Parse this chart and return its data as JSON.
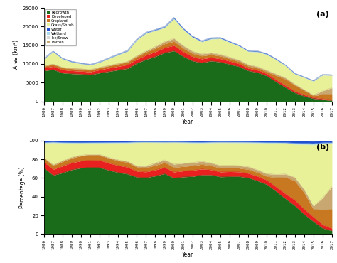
{
  "years": [
    1986,
    1987,
    1988,
    1989,
    1990,
    1991,
    1992,
    1993,
    1994,
    1995,
    1996,
    1997,
    1998,
    1999,
    2000,
    2001,
    2002,
    2003,
    2004,
    2005,
    2006,
    2007,
    2008,
    2009,
    2010,
    2011,
    2012,
    2013,
    2014,
    2015,
    2016,
    2017
  ],
  "regrowth": [
    8200,
    8500,
    7600,
    7400,
    7300,
    7100,
    7600,
    8000,
    8400,
    8800,
    10200,
    11200,
    12000,
    13000,
    13500,
    12000,
    10800,
    10300,
    10800,
    10500,
    9900,
    9300,
    8200,
    7700,
    6800,
    5200,
    3700,
    2300,
    1400,
    750,
    450,
    250
  ],
  "developed": [
    750,
    850,
    850,
    800,
    780,
    760,
    850,
    900,
    950,
    1000,
    1050,
    1150,
    1250,
    1350,
    1450,
    1250,
    1150,
    1050,
    950,
    900,
    850,
    750,
    660,
    650,
    610,
    560,
    510,
    460,
    370,
    280,
    270,
    180
  ],
  "cropland": [
    450,
    550,
    550,
    550,
    550,
    530,
    550,
    600,
    650,
    700,
    750,
    850,
    950,
    1050,
    1100,
    950,
    850,
    800,
    750,
    700,
    650,
    600,
    560,
    560,
    510,
    1150,
    1750,
    1550,
    1150,
    460,
    1150,
    1450
  ],
  "grass_shrub": [
    1800,
    3200,
    2200,
    1600,
    1300,
    1200,
    1300,
    1800,
    2300,
    2700,
    4200,
    4700,
    4200,
    3700,
    5200,
    4300,
    3700,
    3200,
    3700,
    4200,
    3900,
    3700,
    3500,
    3900,
    4200,
    3800,
    3200,
    2700,
    3200,
    3700,
    4200,
    3300
  ],
  "water": [
    180,
    180,
    180,
    180,
    180,
    160,
    170,
    180,
    190,
    200,
    210,
    220,
    240,
    260,
    280,
    260,
    250,
    240,
    230,
    220,
    210,
    200,
    185,
    195,
    205,
    185,
    175,
    165,
    155,
    150,
    140,
    130
  ],
  "wetland": [
    90,
    90,
    90,
    90,
    90,
    80,
    85,
    90,
    95,
    100,
    105,
    110,
    120,
    130,
    140,
    130,
    125,
    120,
    115,
    110,
    105,
    100,
    92,
    97,
    102,
    92,
    88,
    83,
    78,
    74,
    70,
    65
  ],
  "ice_snow": [
    40,
    40,
    40,
    40,
    40,
    36,
    38,
    40,
    42,
    44,
    46,
    48,
    52,
    56,
    60,
    56,
    54,
    52,
    50,
    48,
    46,
    44,
    40,
    42,
    44,
    40,
    38,
    36,
    34,
    32,
    30,
    28
  ],
  "barren": [
    90,
    110,
    100,
    90,
    90,
    90,
    100,
    110,
    120,
    140,
    190,
    280,
    480,
    580,
    780,
    680,
    580,
    530,
    480,
    460,
    430,
    400,
    380,
    380,
    360,
    380,
    330,
    280,
    230,
    185,
    950,
    1750
  ],
  "colors": {
    "regrowth": "#1a6b1a",
    "developed": "#e82020",
    "cropland": "#c87820",
    "grass_shrub": "#e8f098",
    "water": "#2050d0",
    "wetland": "#a8d8f0",
    "ice_snow": "#d8d8d8",
    "barren": "#c8a870"
  },
  "title_a": "(a)",
  "title_b": "(b)",
  "ylabel_a": "Area (km²)",
  "ylabel_b": "Percentage (%)",
  "xlabel": "Year",
  "ylim_a": [
    0,
    25000
  ],
  "ylim_b": [
    0,
    100
  ],
  "yticks_a": [
    0,
    5000,
    10000,
    15000,
    20000,
    25000
  ],
  "yticks_b": [
    0,
    20,
    40,
    60,
    80,
    100
  ],
  "plot_order": [
    "regrowth",
    "developed",
    "cropland",
    "barren",
    "grass_shrub",
    "wetland",
    "water",
    "ice_snow"
  ],
  "leg_order": [
    "regrowth",
    "developed",
    "cropland",
    "grass_shrub",
    "water",
    "wetland",
    "ice_snow",
    "barren"
  ],
  "leg_labels": [
    "Regrowth",
    "Developed",
    "Cropland",
    "Grass/Shrub",
    "Water",
    "Wetland",
    "Ice/Snow",
    "Barren"
  ]
}
